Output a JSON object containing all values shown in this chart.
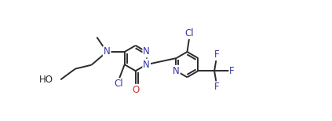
{
  "background": "#ffffff",
  "bond_color": "#2b2b2b",
  "atom_colors": {
    "N": "#3333aa",
    "O": "#cc3333",
    "Cl": "#3333aa",
    "F": "#3333aa",
    "C": "#2b2b2b"
  },
  "bond_width": 1.4,
  "font_size": 8.5,
  "figsize": [
    4.23,
    1.54
  ],
  "dpi": 100
}
